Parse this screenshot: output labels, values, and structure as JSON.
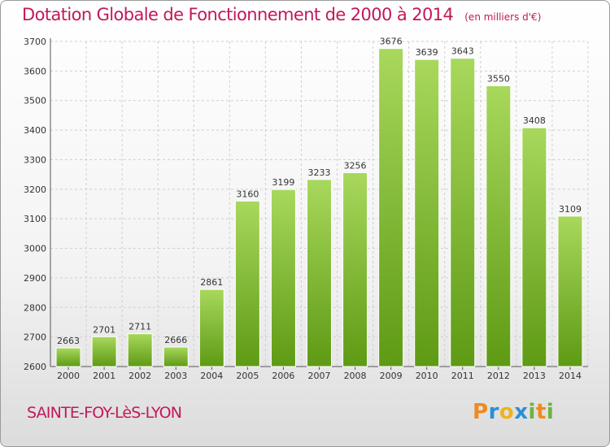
{
  "title": "Dotation Globale de Fonctionnement de 2000 à 2014",
  "unit": "(en milliers d'€)",
  "commune": "SAINTE-FOY-LèS-LYON",
  "logo": {
    "p": "P",
    "r": "r",
    "o": "o",
    "x": "x",
    "i1": "i",
    "t": "t",
    "i2": "i"
  },
  "colors": {
    "bar_top": "#a8d85c",
    "bar_bottom": "#5e9a14",
    "title": "#c2185b",
    "grid": "#cfcfcf"
  },
  "chart_data": {
    "type": "bar",
    "title": "Dotation Globale de Fonctionnement de 2000 à 2014",
    "categories": [
      "2000",
      "2001",
      "2002",
      "2003",
      "2004",
      "2005",
      "2006",
      "2007",
      "2008",
      "2009",
      "2010",
      "2011",
      "2012",
      "2013",
      "2014"
    ],
    "values": [
      2663,
      2701,
      2711,
      2666,
      2861,
      3160,
      3199,
      3233,
      3256,
      3676,
      3639,
      3643,
      3550,
      3408,
      3109
    ],
    "ylim": [
      2600,
      3700
    ],
    "yticks": [
      2600,
      2700,
      2800,
      2900,
      3000,
      3100,
      3200,
      3300,
      3400,
      3500,
      3600,
      3700
    ],
    "xlabel": "",
    "ylabel": "",
    "grid": true,
    "data_labels": true
  }
}
